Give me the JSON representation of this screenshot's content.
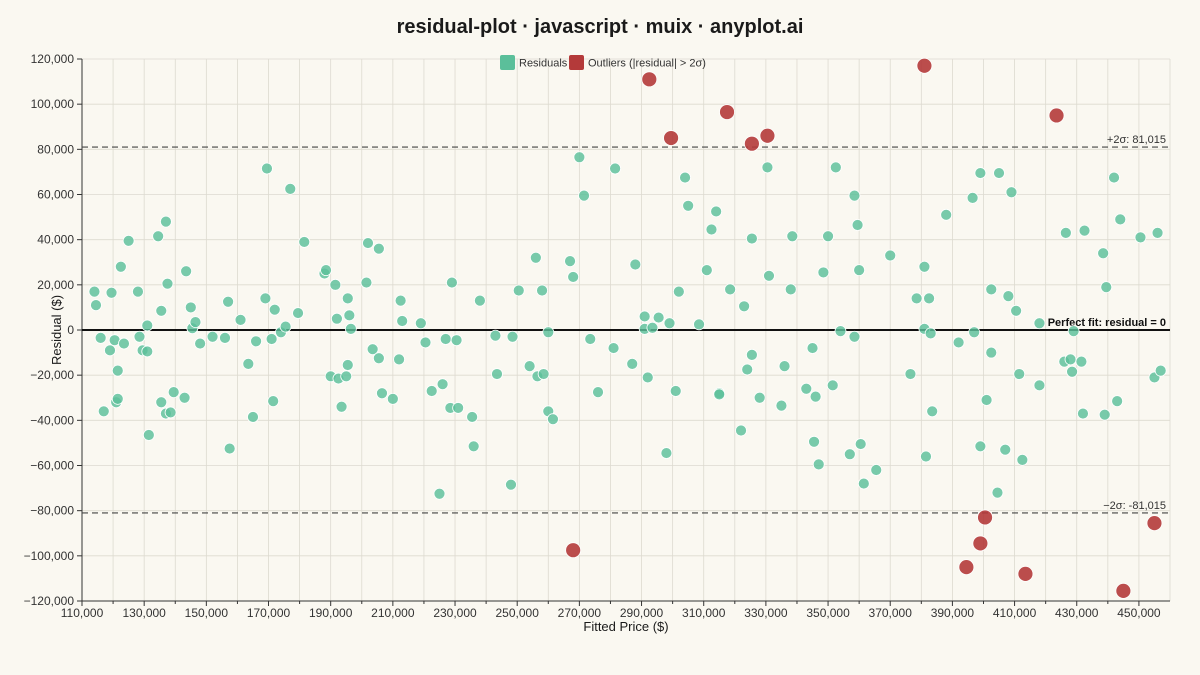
{
  "colors": {
    "background": "#FAF8F1",
    "residual": "#5BBF9A",
    "outlier": "#B43A3A",
    "grid": "#DDDAD0"
  },
  "chart_data": {
    "type": "scatter",
    "title": "residual-plot · javascript · muix · anyplot.ai",
    "xlabel": "Fitted Price ($)",
    "ylabel": "Residual ($)",
    "xlim": [
      110000,
      460000
    ],
    "ylim": [
      -120000,
      120000
    ],
    "x_ticks": [
      110000,
      130000,
      150000,
      170000,
      190000,
      210000,
      230000,
      250000,
      270000,
      290000,
      310000,
      330000,
      350000,
      370000,
      390000,
      410000,
      430000,
      450000
    ],
    "y_ticks": [
      -120000,
      -100000,
      -80000,
      -60000,
      -40000,
      -20000,
      0,
      20000,
      40000,
      60000,
      80000,
      100000,
      120000
    ],
    "x_tick_labels": [
      "110,000",
      "130,000",
      "150,000",
      "170,000",
      "190,000",
      "210,000",
      "230,000",
      "250,000",
      "270,000",
      "290,000",
      "310,000",
      "330,000",
      "350,000",
      "370,000",
      "390,000",
      "410,000",
      "430,000",
      "450,000"
    ],
    "y_tick_labels": [
      "−120,000",
      "−100,000",
      "−80,000",
      "−60,000",
      "−40,000",
      "−20,000",
      "0",
      "20,000",
      "40,000",
      "60,000",
      "80,000",
      "100,000",
      "120,000"
    ],
    "grid": true,
    "legend_position": "top-center",
    "reference_lines": [
      {
        "y": 0,
        "label": "Perfect fit: residual = 0",
        "style": "solid"
      },
      {
        "y": 81015,
        "label": "+2σ: 81,015",
        "style": "dashed"
      },
      {
        "y": -81015,
        "label": "−2σ: -81,015",
        "style": "dashed"
      }
    ],
    "series": [
      {
        "name": "Residuals",
        "points": [
          [
            114000,
            17000
          ],
          [
            114500,
            11000
          ],
          [
            116000,
            -3500
          ],
          [
            117000,
            -36000
          ],
          [
            119000,
            -9000
          ],
          [
            119500,
            16500
          ],
          [
            120500,
            -4500
          ],
          [
            121000,
            -32000
          ],
          [
            121500,
            -30500
          ],
          [
            121500,
            -18000
          ],
          [
            122500,
            28000
          ],
          [
            123500,
            -6000
          ],
          [
            125000,
            39500
          ],
          [
            128000,
            17000
          ],
          [
            128500,
            -3000
          ],
          [
            129500,
            -9000
          ],
          [
            131000,
            2000
          ],
          [
            131500,
            -46500
          ],
          [
            131000,
            -9500
          ],
          [
            134500,
            41500
          ],
          [
            135500,
            8500
          ],
          [
            135500,
            -32000
          ],
          [
            137000,
            48000
          ],
          [
            137000,
            -37000
          ],
          [
            137500,
            20500
          ],
          [
            138500,
            -36500
          ],
          [
            139500,
            -27500
          ],
          [
            143000,
            -30000
          ],
          [
            143500,
            26000
          ],
          [
            145000,
            10000
          ],
          [
            145500,
            800
          ],
          [
            146500,
            3500
          ],
          [
            148000,
            -6000
          ],
          [
            152000,
            -3000
          ],
          [
            156000,
            -3500
          ],
          [
            157000,
            12500
          ],
          [
            157500,
            -52500
          ],
          [
            161000,
            4500
          ],
          [
            163500,
            -15000
          ],
          [
            165000,
            -38500
          ],
          [
            166000,
            -5000
          ],
          [
            169000,
            14000
          ],
          [
            169500,
            71500
          ],
          [
            171000,
            -4000
          ],
          [
            171500,
            -31500
          ],
          [
            172000,
            9000
          ],
          [
            174000,
            -1000
          ],
          [
            175500,
            1500
          ],
          [
            177000,
            62500
          ],
          [
            179500,
            7500
          ],
          [
            181500,
            39000
          ],
          [
            188000,
            25000
          ],
          [
            188500,
            26500
          ],
          [
            190000,
            -20500
          ],
          [
            191500,
            20000
          ],
          [
            192000,
            5000
          ],
          [
            192500,
            -21500
          ],
          [
            193500,
            -34000
          ],
          [
            195000,
            -20500
          ],
          [
            195500,
            -15500
          ],
          [
            195500,
            14000
          ],
          [
            196000,
            6500
          ],
          [
            196500,
            500
          ],
          [
            201500,
            21000
          ],
          [
            202000,
            38500
          ],
          [
            203500,
            -8500
          ],
          [
            205500,
            -12500
          ],
          [
            205500,
            36000
          ],
          [
            206500,
            -28000
          ],
          [
            210000,
            -30500
          ],
          [
            212000,
            -13000
          ],
          [
            212500,
            13000
          ],
          [
            213000,
            4000
          ],
          [
            219000,
            3000
          ],
          [
            220500,
            -5500
          ],
          [
            222500,
            -27000
          ],
          [
            225000,
            -72500
          ],
          [
            226000,
            -24000
          ],
          [
            227000,
            -4000
          ],
          [
            228500,
            -34500
          ],
          [
            229000,
            21000
          ],
          [
            230500,
            -4500
          ],
          [
            231000,
            -34500
          ],
          [
            235500,
            -38500
          ],
          [
            236000,
            -51500
          ],
          [
            238000,
            13000
          ],
          [
            243000,
            -2500
          ],
          [
            243500,
            -19500
          ],
          [
            248000,
            -68500
          ],
          [
            248500,
            -3000
          ],
          [
            250500,
            17500
          ],
          [
            254000,
            -16000
          ],
          [
            256000,
            32000
          ],
          [
            256500,
            -20500
          ],
          [
            258000,
            17500
          ],
          [
            258500,
            -19500
          ],
          [
            260000,
            -36000
          ],
          [
            260000,
            -1000
          ],
          [
            261500,
            -39500
          ],
          [
            267000,
            30500
          ],
          [
            268000,
            23500
          ],
          [
            270000,
            76500
          ],
          [
            271500,
            59500
          ],
          [
            273500,
            -4000
          ],
          [
            276000,
            -27500
          ],
          [
            281000,
            -8000
          ],
          [
            281500,
            71500
          ],
          [
            287000,
            -15000
          ],
          [
            288000,
            29000
          ],
          [
            291000,
            6000
          ],
          [
            291000,
            500
          ],
          [
            292000,
            -21000
          ],
          [
            293500,
            1000
          ],
          [
            295500,
            5500
          ],
          [
            298000,
            -54500
          ],
          [
            299000,
            3000
          ],
          [
            301000,
            -27000
          ],
          [
            302000,
            17000
          ],
          [
            304000,
            67500
          ],
          [
            305000,
            55000
          ],
          [
            308500,
            2500
          ],
          [
            311000,
            26500
          ],
          [
            312500,
            44500
          ],
          [
            314000,
            52500
          ],
          [
            315000,
            -28000
          ],
          [
            315000,
            -28500
          ],
          [
            318500,
            18000
          ],
          [
            322000,
            -44500
          ],
          [
            323000,
            10500
          ],
          [
            324000,
            -17500
          ],
          [
            325500,
            40500
          ],
          [
            325500,
            -11000
          ],
          [
            328000,
            -30000
          ],
          [
            330500,
            72000
          ],
          [
            331000,
            24000
          ],
          [
            335000,
            -33500
          ],
          [
            336000,
            -16000
          ],
          [
            338500,
            41500
          ],
          [
            338000,
            18000
          ],
          [
            343000,
            -26000
          ],
          [
            345000,
            -8000
          ],
          [
            345500,
            -49500
          ],
          [
            346000,
            -29500
          ],
          [
            347000,
            -59500
          ],
          [
            348500,
            25500
          ],
          [
            350000,
            41500
          ],
          [
            351500,
            -24500
          ],
          [
            352500,
            72000
          ],
          [
            354000,
            -500
          ],
          [
            357000,
            -55000
          ],
          [
            358500,
            59500
          ],
          [
            358500,
            -3000
          ],
          [
            359500,
            46500
          ],
          [
            360000,
            26500
          ],
          [
            360500,
            -50500
          ],
          [
            361500,
            -68000
          ],
          [
            365500,
            -62000
          ],
          [
            370000,
            33000
          ],
          [
            376500,
            -19500
          ],
          [
            378500,
            14000
          ],
          [
            381000,
            28000
          ],
          [
            381000,
            500
          ],
          [
            381500,
            -56000
          ],
          [
            382500,
            14000
          ],
          [
            383000,
            -1500
          ],
          [
            383500,
            -36000
          ],
          [
            388000,
            51000
          ],
          [
            392000,
            -5500
          ],
          [
            396500,
            58500
          ],
          [
            397000,
            -1000
          ],
          [
            399000,
            69500
          ],
          [
            399000,
            -51500
          ],
          [
            401000,
            -31000
          ],
          [
            402500,
            -10000
          ],
          [
            402500,
            18000
          ],
          [
            404500,
            -72000
          ],
          [
            405000,
            69500
          ],
          [
            407000,
            -53000
          ],
          [
            408000,
            15000
          ],
          [
            409000,
            61000
          ],
          [
            410500,
            8500
          ],
          [
            411500,
            -19500
          ],
          [
            412500,
            -57500
          ],
          [
            418000,
            3000
          ],
          [
            418000,
            -24500
          ],
          [
            426000,
            -14000
          ],
          [
            426500,
            43000
          ],
          [
            428000,
            -13000
          ],
          [
            428500,
            -18500
          ],
          [
            429000,
            -500
          ],
          [
            431500,
            -14000
          ],
          [
            432000,
            -37000
          ],
          [
            432500,
            44000
          ],
          [
            438500,
            34000
          ],
          [
            439000,
            -37500
          ],
          [
            439500,
            19000
          ],
          [
            442000,
            67500
          ],
          [
            443000,
            -31500
          ],
          [
            444000,
            49000
          ],
          [
            450500,
            41000
          ],
          [
            455000,
            -21000
          ],
          [
            456000,
            43000
          ],
          [
            457000,
            -18000
          ]
        ]
      },
      {
        "name": "Outliers (|residual| > 2σ)",
        "points": [
          [
            268000,
            -97500
          ],
          [
            292500,
            111000
          ],
          [
            299500,
            85000
          ],
          [
            317500,
            96500
          ],
          [
            325500,
            82500
          ],
          [
            330500,
            86000
          ],
          [
            381000,
            117000
          ],
          [
            394500,
            -105000
          ],
          [
            399000,
            -94500
          ],
          [
            400500,
            -83000
          ],
          [
            413500,
            -108000
          ],
          [
            423500,
            95000
          ],
          [
            445000,
            -115500
          ],
          [
            455000,
            -85500
          ]
        ]
      }
    ]
  }
}
